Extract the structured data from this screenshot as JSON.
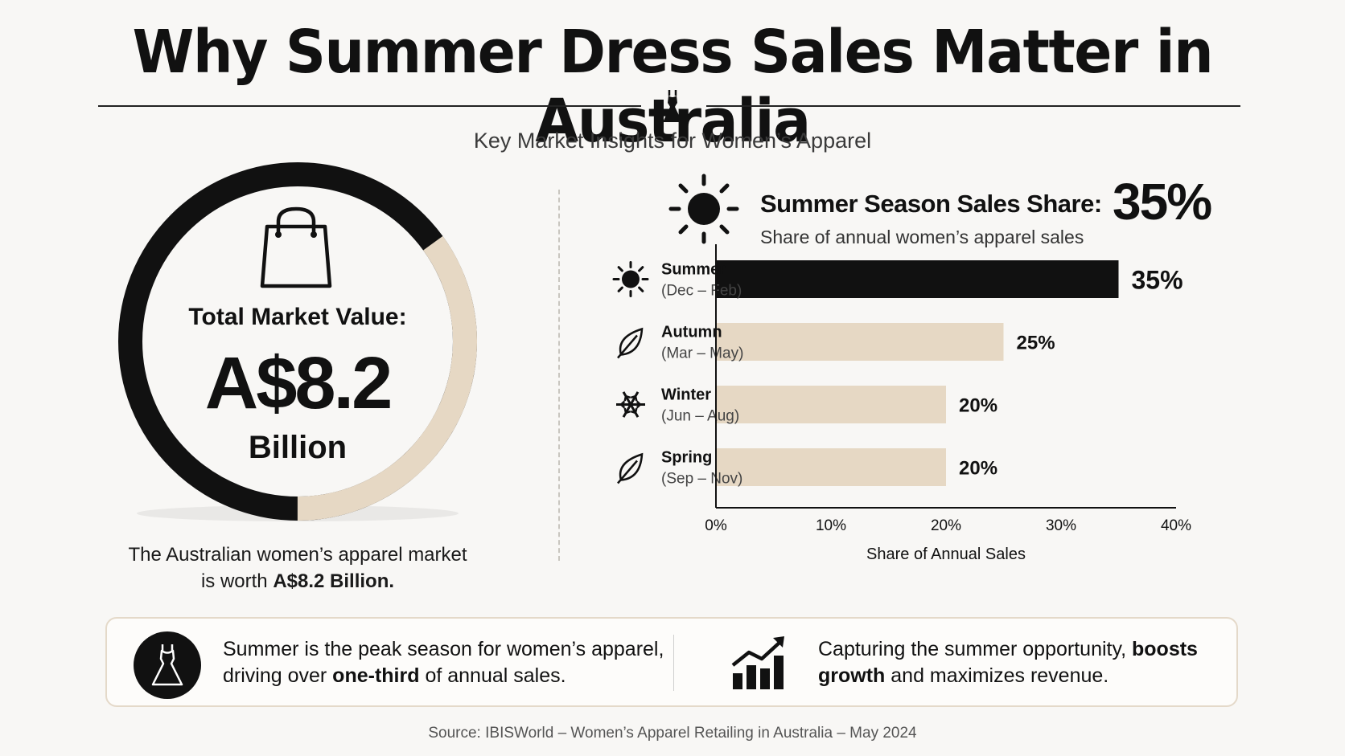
{
  "title": "Why Summer Dress Sales Matter in Australia",
  "subtitle": "Key Market Insights for Women’s Apparel",
  "colors": {
    "black": "#111111",
    "beige": "#e6d8c4",
    "background": "#f8f7f5"
  },
  "icons": {
    "divider": "dress-icon",
    "market": "shopping-bag-icon",
    "season": "sun-icon",
    "summer": "sun-icon",
    "autumn": "leaf-icon",
    "winter": "snowflake-icon",
    "spring": "leaf-icon",
    "callout_left": "dress-icon",
    "callout_right": "growth-chart-icon"
  },
  "market": {
    "label": "Total Market Value:",
    "value": "A$8.2",
    "unit": "Billion",
    "summer_share_fraction": 0.35,
    "description_prefix": "The Australian women’s apparel market is worth ",
    "description_bold": "A$8.2 Billion."
  },
  "summer_share": {
    "label": "Summer Season Sales Share:",
    "value": "35%",
    "description": "Share of annual women’s apparel sales"
  },
  "chart_data": {
    "type": "bar",
    "orientation": "horizontal",
    "categories": [
      "Summer",
      "Autumn",
      "Winter",
      "Spring"
    ],
    "category_ranges": [
      "(Dec – Feb)",
      "(Mar – May)",
      "(Jun – Aug)",
      "(Sep – Nov)"
    ],
    "values": [
      35,
      25,
      20,
      20
    ],
    "value_labels": [
      "35%",
      "25%",
      "20%",
      "20%"
    ],
    "xlabel": "Share of Annual Sales",
    "xlim": [
      0,
      40
    ],
    "xticks": [
      "0%",
      "10%",
      "20%",
      "30%",
      "40%"
    ],
    "grid": false,
    "bar_colors": [
      "#111111",
      "#e6d8c4",
      "#e6d8c4",
      "#e6d8c4"
    ]
  },
  "callout": {
    "left_pre": "Summer is the peak season for women’s apparel, driving over ",
    "left_bold": "one-third",
    "left_post": " of annual sales.",
    "right_pre": "Capturing the summer opportunity, ",
    "right_bold": "boosts growth",
    "right_post": " and maximizes revenue."
  },
  "source": "Source: IBISWorld – Women’s Apparel Retailing in Australia – May 2024"
}
